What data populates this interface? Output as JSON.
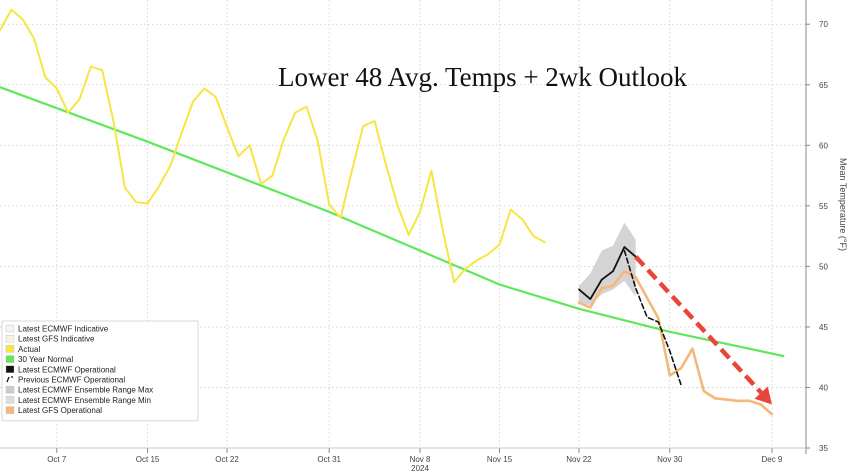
{
  "chart_data": {
    "type": "line",
    "title": "Lower 48 Avg. Temps + 2wk Outlook",
    "ylabel": "Mean Temperature (°F)",
    "year_label": "2024",
    "ylim": [
      35,
      72
    ],
    "x_start": "2024-10-02",
    "x_end": "2024-12-12",
    "y_ticks": [
      35,
      40,
      45,
      50,
      55,
      60,
      65,
      70
    ],
    "x_ticks": [
      {
        "date": "2024-10-07",
        "label": "Oct 7"
      },
      {
        "date": "2024-10-15",
        "label": "Oct 15"
      },
      {
        "date": "2024-10-22",
        "label": "Oct 22"
      },
      {
        "date": "2024-10-31",
        "label": "Oct 31"
      },
      {
        "date": "2024-11-08",
        "label": "Nov 8"
      },
      {
        "date": "2024-11-15",
        "label": "Nov 15"
      },
      {
        "date": "2024-11-22",
        "label": "Nov 22"
      },
      {
        "date": "2024-11-30",
        "label": "Nov 30"
      },
      {
        "date": "2024-12-09",
        "label": "Dec 9"
      }
    ],
    "grid": true,
    "legend_position": "bottom-left",
    "colors": {
      "actual": "#f5e642",
      "normal": "#5ee85a",
      "ecmwf_operational": "#111111",
      "prev_ecmwf": "#111111",
      "range_max": "#cccccc",
      "range_min": "#dddddd",
      "gfs_operational": "#f4b97a",
      "arrow": "#e8463a",
      "grid": "#cccccc"
    },
    "series": [
      {
        "name": "Actual",
        "key": "actual",
        "x": [
          "2024-10-02",
          "2024-10-03",
          "2024-10-04",
          "2024-10-05",
          "2024-10-06",
          "2024-10-07",
          "2024-10-08",
          "2024-10-09",
          "2024-10-10",
          "2024-10-11",
          "2024-10-12",
          "2024-10-13",
          "2024-10-14",
          "2024-10-15",
          "2024-10-16",
          "2024-10-17",
          "2024-10-18",
          "2024-10-19",
          "2024-10-20",
          "2024-10-21",
          "2024-10-22",
          "2024-10-23",
          "2024-10-24",
          "2024-10-25",
          "2024-10-26",
          "2024-10-27",
          "2024-10-28",
          "2024-10-29",
          "2024-10-30",
          "2024-10-31",
          "2024-11-01",
          "2024-11-02",
          "2024-11-03",
          "2024-11-04",
          "2024-11-05",
          "2024-11-06",
          "2024-11-07",
          "2024-11-08",
          "2024-11-09",
          "2024-11-10",
          "2024-11-11",
          "2024-11-12",
          "2024-11-13",
          "2024-11-14",
          "2024-11-15",
          "2024-11-16",
          "2024-11-17",
          "2024-11-18",
          "2024-11-19"
        ],
        "values": [
          69.5,
          71.2,
          70.4,
          68.8,
          65.6,
          64.7,
          62.7,
          63.8,
          66.5,
          66.2,
          62.0,
          56.5,
          55.3,
          55.2,
          56.6,
          58.3,
          61.0,
          63.6,
          64.7,
          64.0,
          61.5,
          59.1,
          60.0,
          56.8,
          57.5,
          60.5,
          62.7,
          63.2,
          60.3,
          55.1,
          54.0,
          57.9,
          61.6,
          62.0,
          58.4,
          55.1,
          52.6,
          54.5,
          57.9,
          53.0,
          48.7,
          49.8,
          50.5,
          51.0,
          51.8,
          54.7,
          53.9,
          52.5,
          52.0
        ]
      },
      {
        "name": "30 Year Normal",
        "key": "normal",
        "x": [
          "2024-10-02",
          "2024-10-15",
          "2024-10-31",
          "2024-11-15",
          "2024-11-22",
          "2024-11-30",
          "2024-12-10"
        ],
        "values": [
          64.8,
          60.3,
          54.5,
          48.5,
          46.5,
          44.6,
          42.6
        ]
      },
      {
        "name": "Latest ECMWF Operational",
        "key": "ecmwf_operational",
        "x": [
          "2024-11-22",
          "2024-11-23",
          "2024-11-24",
          "2024-11-25",
          "2024-11-26",
          "2024-11-27"
        ],
        "values": [
          48.1,
          47.3,
          48.9,
          49.6,
          51.6,
          50.8
        ]
      },
      {
        "name": "Previous ECMWF Operational",
        "key": "prev_ecmwf",
        "dashed": true,
        "x": [
          "2024-11-26",
          "2024-11-27",
          "2024-11-28",
          "2024-11-29",
          "2024-11-30",
          "2024-12-01"
        ],
        "values": [
          51.3,
          48.2,
          45.8,
          45.4,
          43.0,
          40.2
        ]
      },
      {
        "name": "Latest GFS Operational",
        "key": "gfs_operational",
        "x": [
          "2024-11-22",
          "2024-11-23",
          "2024-11-24",
          "2024-11-25",
          "2024-11-26",
          "2024-11-27",
          "2024-11-28",
          "2024-11-29",
          "2024-11-30",
          "2024-12-01",
          "2024-12-02",
          "2024-12-03",
          "2024-12-04",
          "2024-12-05",
          "2024-12-06",
          "2024-12-07",
          "2024-12-08",
          "2024-12-09"
        ],
        "values": [
          47.0,
          46.6,
          48.2,
          48.4,
          49.6,
          49.1,
          47.4,
          45.7,
          41.0,
          41.6,
          43.2,
          39.7,
          39.1,
          39.0,
          38.9,
          38.9,
          38.6,
          37.8
        ]
      }
    ],
    "range": {
      "name_max": "Latest ECMWF Ensemble Range Max",
      "name_min": "Latest ECMWF Ensemble Range Min",
      "x": [
        "2024-11-22",
        "2024-11-23",
        "2024-11-24",
        "2024-11-25",
        "2024-11-26",
        "2024-11-27"
      ],
      "max": [
        48.4,
        49.4,
        51.3,
        51.7,
        53.6,
        52.2
      ],
      "min": [
        47.0,
        46.8,
        47.7,
        48.1,
        48.8,
        47.5
      ]
    },
    "legend": [
      {
        "label": "Latest ECMWF Indicative",
        "key": "ecmwf_indicative",
        "swatch": "#f4f4f4"
      },
      {
        "label": "Latest GFS Indicative",
        "key": "gfs_indicative",
        "swatch": "#fbf0e3"
      },
      {
        "label": "Actual",
        "key": "actual",
        "swatch": "#f5e642"
      },
      {
        "label": "30 Year Normal",
        "key": "normal",
        "swatch": "#5ee85a"
      },
      {
        "label": "Latest ECMWF Operational",
        "key": "ecmwf_operational",
        "swatch": "#111111"
      },
      {
        "label": "Previous ECMWF Operational",
        "key": "prev_ecmwf",
        "swatch": "dashed"
      },
      {
        "label": "Latest ECMWF Ensemble Range Max",
        "key": "range_max",
        "swatch": "#cccccc"
      },
      {
        "label": "Latest ECMWF Ensemble Range Min",
        "key": "range_min",
        "swatch": "#dddddd"
      },
      {
        "label": "Latest GFS Operational",
        "key": "gfs_operational",
        "swatch": "#f4b97a"
      }
    ],
    "annotation": {
      "type": "arrow",
      "x": [
        "2024-11-27",
        "2024-12-09"
      ],
      "values": [
        50.8,
        38.6
      ]
    }
  }
}
